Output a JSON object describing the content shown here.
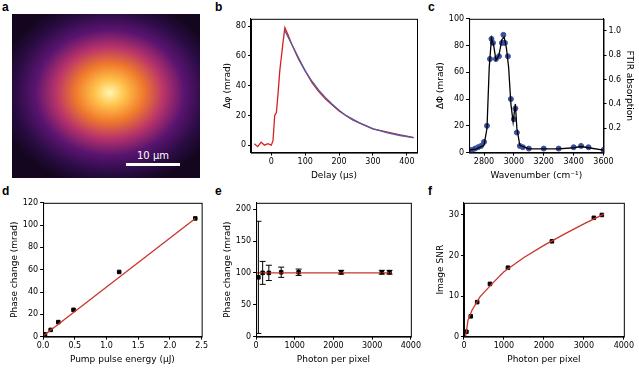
{
  "chart_data": [
    {
      "label": "a",
      "type": "image",
      "scale_bar": "10 μm"
    },
    {
      "label": "b",
      "type": "line",
      "x_label": "Delay (μs)",
      "y_label": "Δφ (mrad)",
      "grid": false,
      "xlim": [
        -60,
        430
      ],
      "xticks": [
        0,
        100,
        200,
        300,
        400
      ],
      "ylim": [
        -5,
        85
      ],
      "yticks": [
        0,
        20,
        40,
        60,
        80
      ],
      "series": [
        {
          "color": "#4a5fa8",
          "marker": "none",
          "line_style": "solid",
          "x": [
            40,
            60,
            80,
            100,
            120,
            140,
            160,
            180,
            200,
            220,
            240,
            260,
            280,
            300,
            320,
            340,
            360,
            380,
            400,
            420
          ],
          "values": [
            77,
            68,
            59,
            50,
            43,
            37,
            32,
            27.5,
            23.5,
            20,
            17.5,
            15,
            13,
            11,
            9.8,
            8.5,
            7.5,
            6.5,
            5.8,
            5
          ]
        },
        {
          "color": "#d62020",
          "marker": "none",
          "line_style": "solid",
          "x": [
            -50,
            -40,
            -30,
            -20,
            -10,
            0,
            5,
            10,
            15,
            20,
            25,
            30,
            35,
            40,
            50,
            60,
            80,
            100,
            120,
            140,
            160,
            180,
            200,
            220,
            240,
            260,
            280,
            300,
            320,
            340,
            360,
            380,
            400,
            420
          ],
          "values": [
            1,
            -1,
            2,
            0,
            1,
            0,
            3,
            20,
            22,
            35,
            50,
            60,
            70,
            79,
            74,
            68,
            58,
            50,
            42,
            36,
            31,
            27,
            23,
            20,
            17,
            15,
            13,
            11,
            10,
            9,
            8,
            7,
            6,
            5
          ]
        }
      ]
    },
    {
      "label": "c",
      "type": "line",
      "x_label": "Wavenumber (cm⁻¹)",
      "y_label": "ΔΦ (mrad)",
      "y2_label": "FTIR absorption",
      "grid": false,
      "xlim": [
        2700,
        3600
      ],
      "xticks": [
        2800,
        3000,
        3200,
        3400,
        3600
      ],
      "ylim": [
        0,
        100
      ],
      "yticks": [
        0,
        20,
        40,
        60,
        80,
        100
      ],
      "y2lim": [
        0,
        1.1
      ],
      "y2ticks": [
        0.2,
        0.4,
        0.6,
        0.8,
        {
          "value": 1,
          "label": "1.0"
        }
      ],
      "series": [
        {
          "color": "#000000",
          "marker": "none",
          "line_style": "solid",
          "axis": "y2",
          "x": [
            2700,
            2750,
            2800,
            2820,
            2835,
            2850,
            2865,
            2880,
            2900,
            2920,
            2935,
            2950,
            2965,
            2980,
            2995,
            3010,
            3020,
            3040,
            3100,
            3200,
            3300,
            3400,
            3450,
            3500,
            3600
          ],
          "values": [
            0.02,
            0.03,
            0.06,
            0.2,
            0.7,
            0.94,
            0.88,
            0.76,
            0.8,
            0.93,
            0.95,
            0.86,
            0.7,
            0.4,
            0.25,
            0.4,
            0.2,
            0.06,
            0.03,
            0.03,
            0.03,
            0.04,
            0.05,
            0.04,
            0.02
          ]
        },
        {
          "color": "#3a4fa0",
          "marker": "circle",
          "line_style": "none",
          "x": [
            2700,
            2720,
            2740,
            2760,
            2780,
            2800,
            2820,
            2840,
            2850,
            2860,
            2880,
            2900,
            2920,
            2930,
            2940,
            2960,
            2980,
            3000,
            3010,
            3020,
            3040,
            3060,
            3100,
            3200,
            3300,
            3400,
            3450,
            3500,
            3600
          ],
          "values": [
            2,
            2,
            3,
            4,
            5,
            8,
            20,
            70,
            85,
            82,
            70,
            72,
            82,
            88,
            82,
            72,
            40,
            25,
            33,
            15,
            5,
            4,
            3,
            3,
            3,
            4,
            5,
            4,
            2
          ]
        }
      ]
    },
    {
      "label": "d",
      "type": "scatter",
      "x_label": "Pump pulse energy (μJ)",
      "y_label": "Phase change (mrad)",
      "grid": false,
      "xlim": [
        0,
        2.5
      ],
      "xticks": [
        {
          "value": 0,
          "label": "0.0"
        },
        {
          "value": 0.5,
          "label": "0.5"
        },
        {
          "value": 1,
          "label": "1.0"
        },
        {
          "value": 1.5,
          "label": "1.5"
        },
        {
          "value": 2,
          "label": "2.0"
        },
        {
          "value": 2.5,
          "label": "2.5"
        }
      ],
      "ylim": [
        0,
        120
      ],
      "yticks": [
        0,
        20,
        40,
        60,
        80,
        100,
        120
      ],
      "series": [
        {
          "color": "#c8352a",
          "marker": "none",
          "line_style": "solid",
          "x": [
            0,
            2.4
          ],
          "values": [
            0.5,
            106
          ]
        },
        {
          "color": "#000000",
          "marker": "square",
          "line_style": "none",
          "x": [
            0.03,
            0.12,
            0.24,
            0.48,
            1.2,
            2.4
          ],
          "values": [
            2,
            6,
            13,
            24,
            58,
            106
          ]
        }
      ]
    },
    {
      "label": "e",
      "type": "scatter",
      "x_label": "Photon per pixel",
      "y_label": "Phase change (mrad)",
      "grid": false,
      "xlim": [
        0,
        4000
      ],
      "xticks": [
        0,
        1000,
        2000,
        3000,
        4000
      ],
      "ylim": [
        0,
        210
      ],
      "yticks": [
        0,
        50,
        100,
        150,
        200
      ],
      "series": [
        {
          "color": "#c8352a",
          "marker": "none",
          "line_style": "solid",
          "x": [
            0,
            3500
          ],
          "values": [
            100,
            100
          ]
        },
        {
          "color": "#000000",
          "marker": "square",
          "line_style": "none",
          "x": [
            60,
            170,
            330,
            650,
            1100,
            2200,
            3250,
            3450
          ],
          "values": [
            93,
            100,
            100,
            101,
            101,
            101,
            101,
            101
          ],
          "errors": [
            88,
            18,
            12,
            8,
            5,
            3,
            3,
            3
          ]
        }
      ]
    },
    {
      "label": "f",
      "type": "scatter",
      "x_label": "Photon per pixel",
      "y_label": "Image SNR",
      "grid": false,
      "xlim": [
        0,
        4000
      ],
      "xticks": [
        0,
        1000,
        2000,
        3000,
        4000
      ],
      "ylim": [
        0,
        33
      ],
      "yticks": [
        0,
        10,
        20,
        30
      ],
      "series": [
        {
          "color": "#c8352a",
          "marker": "none",
          "line_style": "solid",
          "x": [
            40,
            100,
            200,
            400,
            700,
            1000,
            1500,
            2000,
            2500,
            3000,
            3500
          ],
          "values": [
            0,
            4,
            6.5,
            9.8,
            13,
            16,
            19.5,
            22.5,
            25.2,
            27.8,
            30.2
          ]
        },
        {
          "color": "#000000",
          "marker": "square",
          "line_style": "none",
          "x": [
            60,
            170,
            330,
            650,
            1100,
            2200,
            3250,
            3450
          ],
          "values": [
            1.2,
            5,
            8.5,
            13,
            17,
            23.5,
            29.3,
            30
          ]
        }
      ]
    }
  ]
}
